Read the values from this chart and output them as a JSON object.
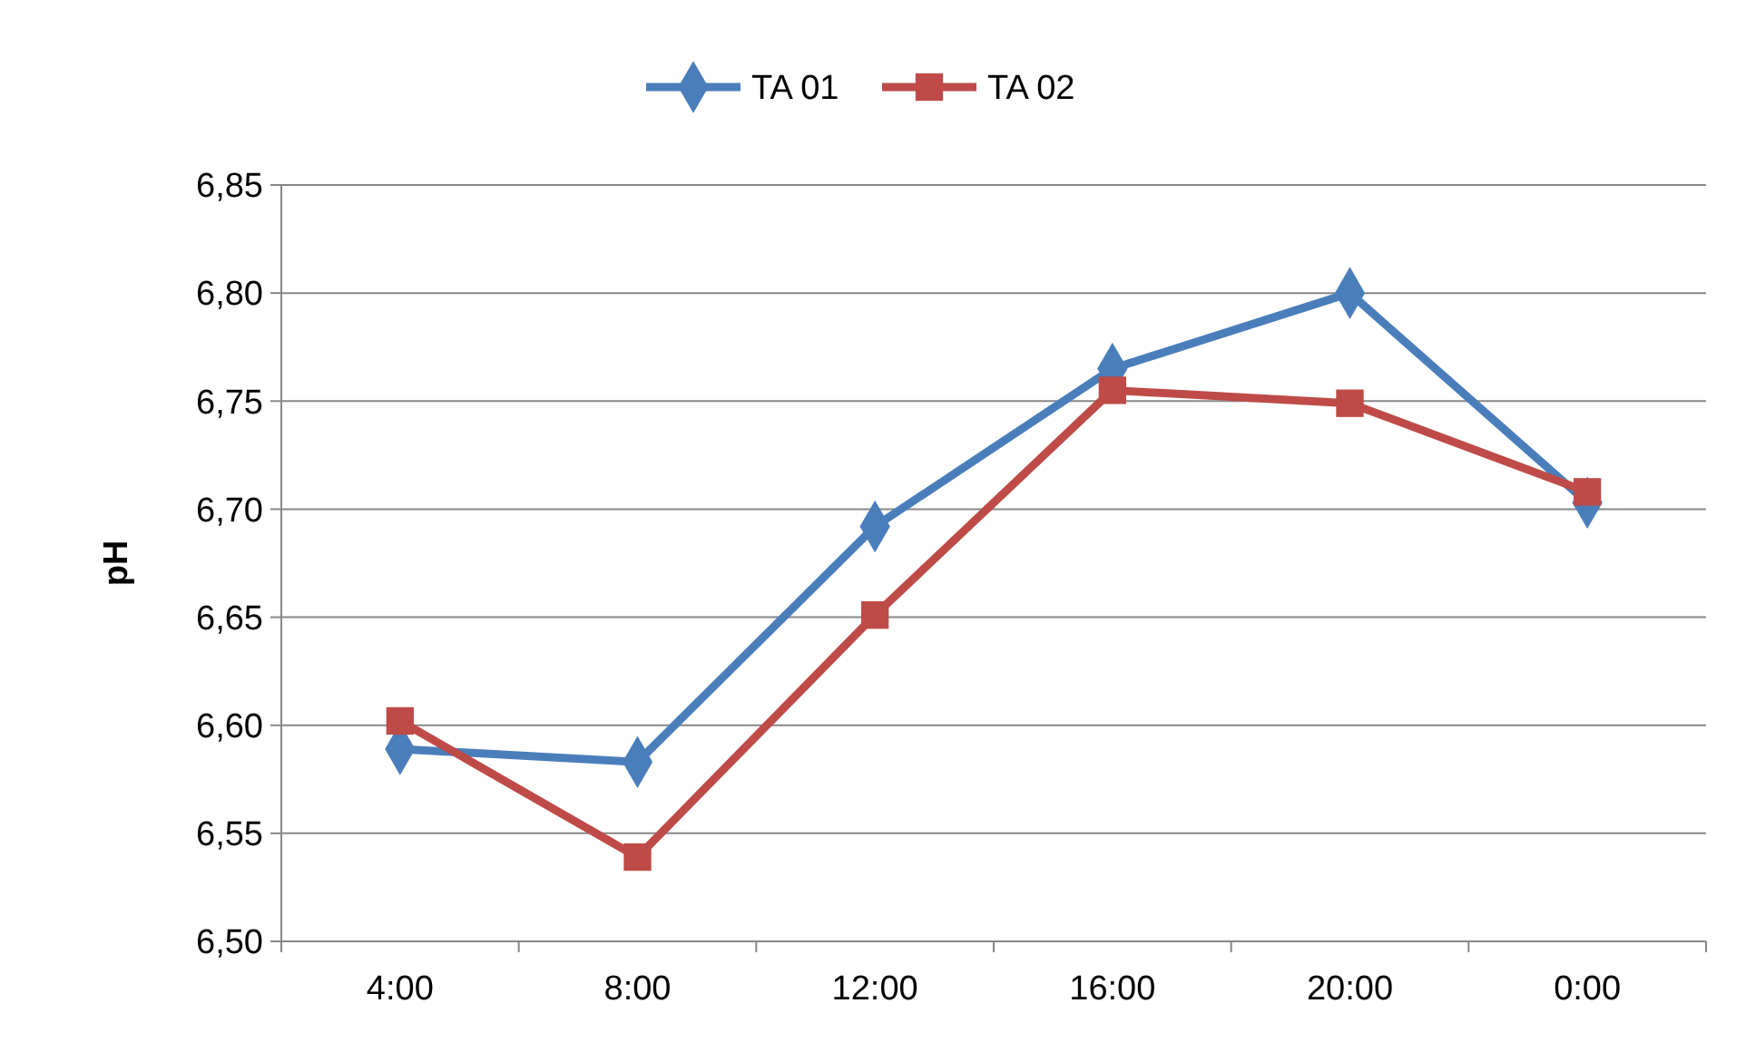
{
  "chart_data": {
    "type": "line",
    "ylabel": "pH",
    "categories": [
      "4:00",
      "8:00",
      "12:00",
      "16:00",
      "20:00",
      "0:00"
    ],
    "series": [
      {
        "name": "TA 01",
        "color": "#4a7ebb",
        "marker": "diamond",
        "values": [
          6.589,
          6.583,
          6.692,
          6.765,
          6.8,
          6.703
        ]
      },
      {
        "name": "TA 02",
        "color": "#be4b48",
        "marker": "square",
        "values": [
          6.602,
          6.539,
          6.651,
          6.755,
          6.749,
          6.708
        ]
      }
    ],
    "ylim": [
      6.5,
      6.85
    ],
    "yticks": [
      {
        "value": 6.5,
        "label": "6,50"
      },
      {
        "value": 6.55,
        "label": "6,55"
      },
      {
        "value": 6.6,
        "label": "6,60"
      },
      {
        "value": 6.65,
        "label": "6,65"
      },
      {
        "value": 6.7,
        "label": "6,70"
      },
      {
        "value": 6.75,
        "label": "6,75"
      },
      {
        "value": 6.8,
        "label": "6,80"
      },
      {
        "value": 6.85,
        "label": "6,85"
      }
    ],
    "grid": "y",
    "legend": "top",
    "line_style": "solid"
  }
}
